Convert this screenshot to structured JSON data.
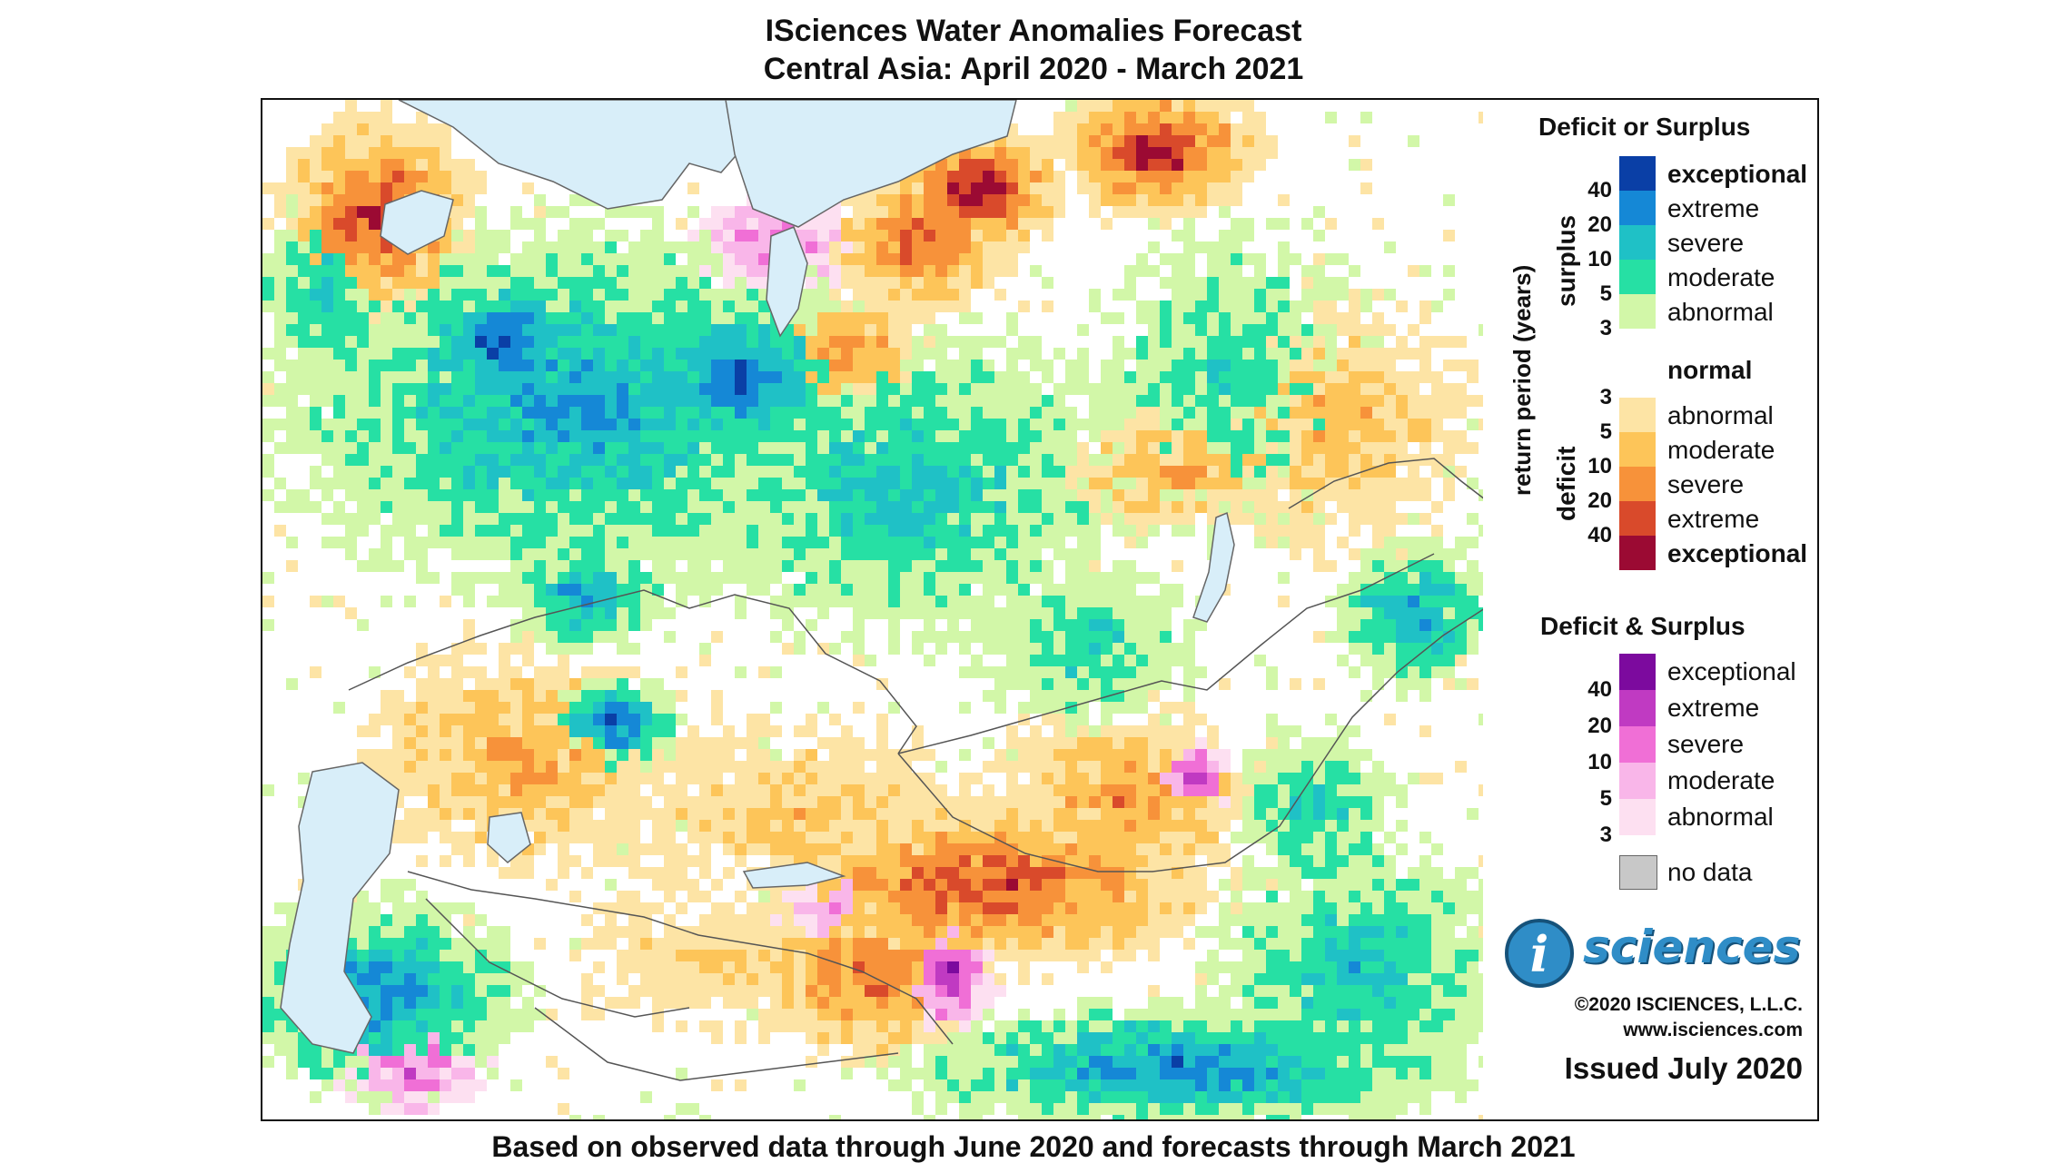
{
  "title": {
    "line1": "ISciences Water Anomalies Forecast",
    "line2": "Central Asia: April 2020 - March 2021"
  },
  "footer": "Based on observed data through June 2020 and forecasts through March 2021",
  "legend": {
    "deficit_or_surplus": {
      "heading": "Deficit or Surplus",
      "axis_label": "return period (years)",
      "surplus_label": "surplus",
      "deficit_label": "deficit",
      "surplus_classes": [
        {
          "label": "exceptional",
          "color": "#0a3fa6",
          "bold": true
        },
        {
          "label": "extreme",
          "color": "#1588d6",
          "bold": false
        },
        {
          "label": "severe",
          "color": "#1fc1c6",
          "bold": false
        },
        {
          "label": "moderate",
          "color": "#26e0a4",
          "bold": false
        },
        {
          "label": "abnormal",
          "color": "#d2f7a8",
          "bold": false
        }
      ],
      "normal_label": "normal",
      "deficit_classes": [
        {
          "label": "abnormal",
          "color": "#fde4a5",
          "bold": false
        },
        {
          "label": "moderate",
          "color": "#fdc559",
          "bold": false
        },
        {
          "label": "severe",
          "color": "#f7923a",
          "bold": false
        },
        {
          "label": "extreme",
          "color": "#d94a2b",
          "bold": false
        },
        {
          "label": "exceptional",
          "color": "#9b0a33",
          "bold": true
        }
      ],
      "surplus_ticks": [
        "40",
        "20",
        "10",
        "5",
        "3"
      ],
      "deficit_ticks": [
        "3",
        "5",
        "10",
        "20",
        "40"
      ]
    },
    "deficit_and_surplus": {
      "heading": "Deficit & Surplus",
      "classes": [
        {
          "label": "exceptional",
          "color": "#7c0a9e"
        },
        {
          "label": "extreme",
          "color": "#c03ac2"
        },
        {
          "label": "severe",
          "color": "#f06fd6"
        },
        {
          "label": "moderate",
          "color": "#f9b6e9"
        },
        {
          "label": "abnormal",
          "color": "#fde0f1"
        }
      ],
      "ticks": [
        "40",
        "20",
        "10",
        "5",
        "3"
      ]
    },
    "no_data": {
      "label": "no data",
      "color": "#c8c8c8"
    }
  },
  "branding": {
    "logo_letter": "i",
    "logo_text": "sciences",
    "copyright": "©2020 ISCIENCES, L.L.C.",
    "website": "www.isciences.com",
    "issued": "Issued July 2020"
  },
  "map_colors": {
    "water": "#d8eef9",
    "border": "#555555",
    "land": "#ffffff"
  }
}
